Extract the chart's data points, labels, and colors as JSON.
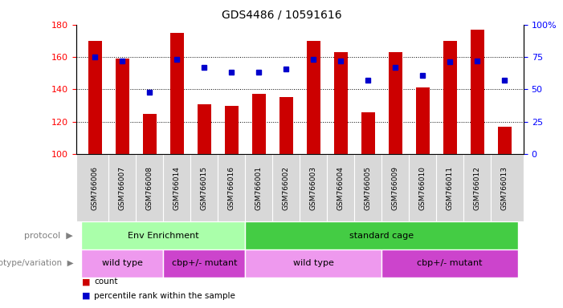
{
  "title": "GDS4486 / 10591616",
  "samples": [
    "GSM766006",
    "GSM766007",
    "GSM766008",
    "GSM766014",
    "GSM766015",
    "GSM766016",
    "GSM766001",
    "GSM766002",
    "GSM766003",
    "GSM766004",
    "GSM766005",
    "GSM766009",
    "GSM766010",
    "GSM766011",
    "GSM766012",
    "GSM766013"
  ],
  "counts": [
    170,
    159,
    125,
    175,
    131,
    130,
    137,
    135,
    170,
    163,
    126,
    163,
    141,
    170,
    177,
    117
  ],
  "percentile_ranks": [
    75,
    72,
    48,
    73,
    67,
    63,
    63,
    66,
    73,
    72,
    57,
    67,
    61,
    71,
    72,
    57
  ],
  "ymin": 100,
  "ymax": 180,
  "left_yticks": [
    100,
    120,
    140,
    160,
    180
  ],
  "right_yticks": [
    0,
    25,
    50,
    75,
    100
  ],
  "bar_color": "#cc0000",
  "dot_color": "#0000cc",
  "protocol_groups": [
    {
      "text": "Env Enrichment",
      "start": 0,
      "end": 5,
      "color": "#aaffaa"
    },
    {
      "text": "standard cage",
      "start": 6,
      "end": 15,
      "color": "#44cc44"
    }
  ],
  "genotype_groups": [
    {
      "text": "wild type",
      "start": 0,
      "end": 2,
      "color": "#ee99ee"
    },
    {
      "text": "cbp+/- mutant",
      "start": 3,
      "end": 5,
      "color": "#cc44cc"
    },
    {
      "text": "wild type",
      "start": 6,
      "end": 10,
      "color": "#ee99ee"
    },
    {
      "text": "cbp+/- mutant",
      "start": 11,
      "end": 15,
      "color": "#cc44cc"
    }
  ],
  "legend_count_color": "#cc0000",
  "legend_dot_color": "#0000cc",
  "tick_label_fontsize": 6.5,
  "bar_width": 0.5,
  "xlim_left": -0.7,
  "xlim_right": 15.7
}
